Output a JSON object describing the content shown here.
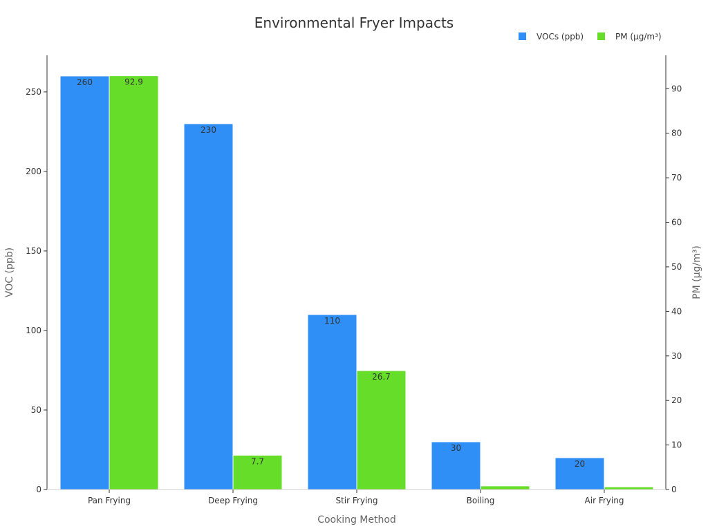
{
  "chart_data": {
    "type": "bar",
    "title": "Environmental Fryer Impacts",
    "xlabel": "Cooking Method",
    "ylabel_left": "VOC (ppb)",
    "ylabel_right": "PM (µg/m³)",
    "categories": [
      "Pan Frying",
      "Deep Frying",
      "Stir Frying",
      "Boiling",
      "Air Frying"
    ],
    "series": [
      {
        "name": "VOCs (ppb)",
        "axis": "left",
        "color": "#2f8ff7",
        "values": [
          260,
          230,
          110,
          30,
          20
        ],
        "labels": [
          "260",
          "230",
          "110",
          "30",
          "20"
        ]
      },
      {
        "name": "PM (µg/m³)",
        "axis": "right",
        "color": "#66dd29",
        "values": [
          92.9,
          7.7,
          26.7,
          0.8,
          0.6
        ],
        "labels": [
          "92.9",
          "7.7",
          "26.7",
          "",
          ""
        ]
      }
    ],
    "ylim_left": [
      0,
      273
    ],
    "ylim_right": [
      0,
      97.5
    ],
    "yticks_left": [
      "0",
      "50",
      "100",
      "150",
      "200",
      "250"
    ],
    "yticks_right": [
      "0",
      "10",
      "20",
      "30",
      "40",
      "50",
      "60",
      "70",
      "80",
      "90"
    ],
    "grid": false,
    "legend_position": "top-right"
  }
}
